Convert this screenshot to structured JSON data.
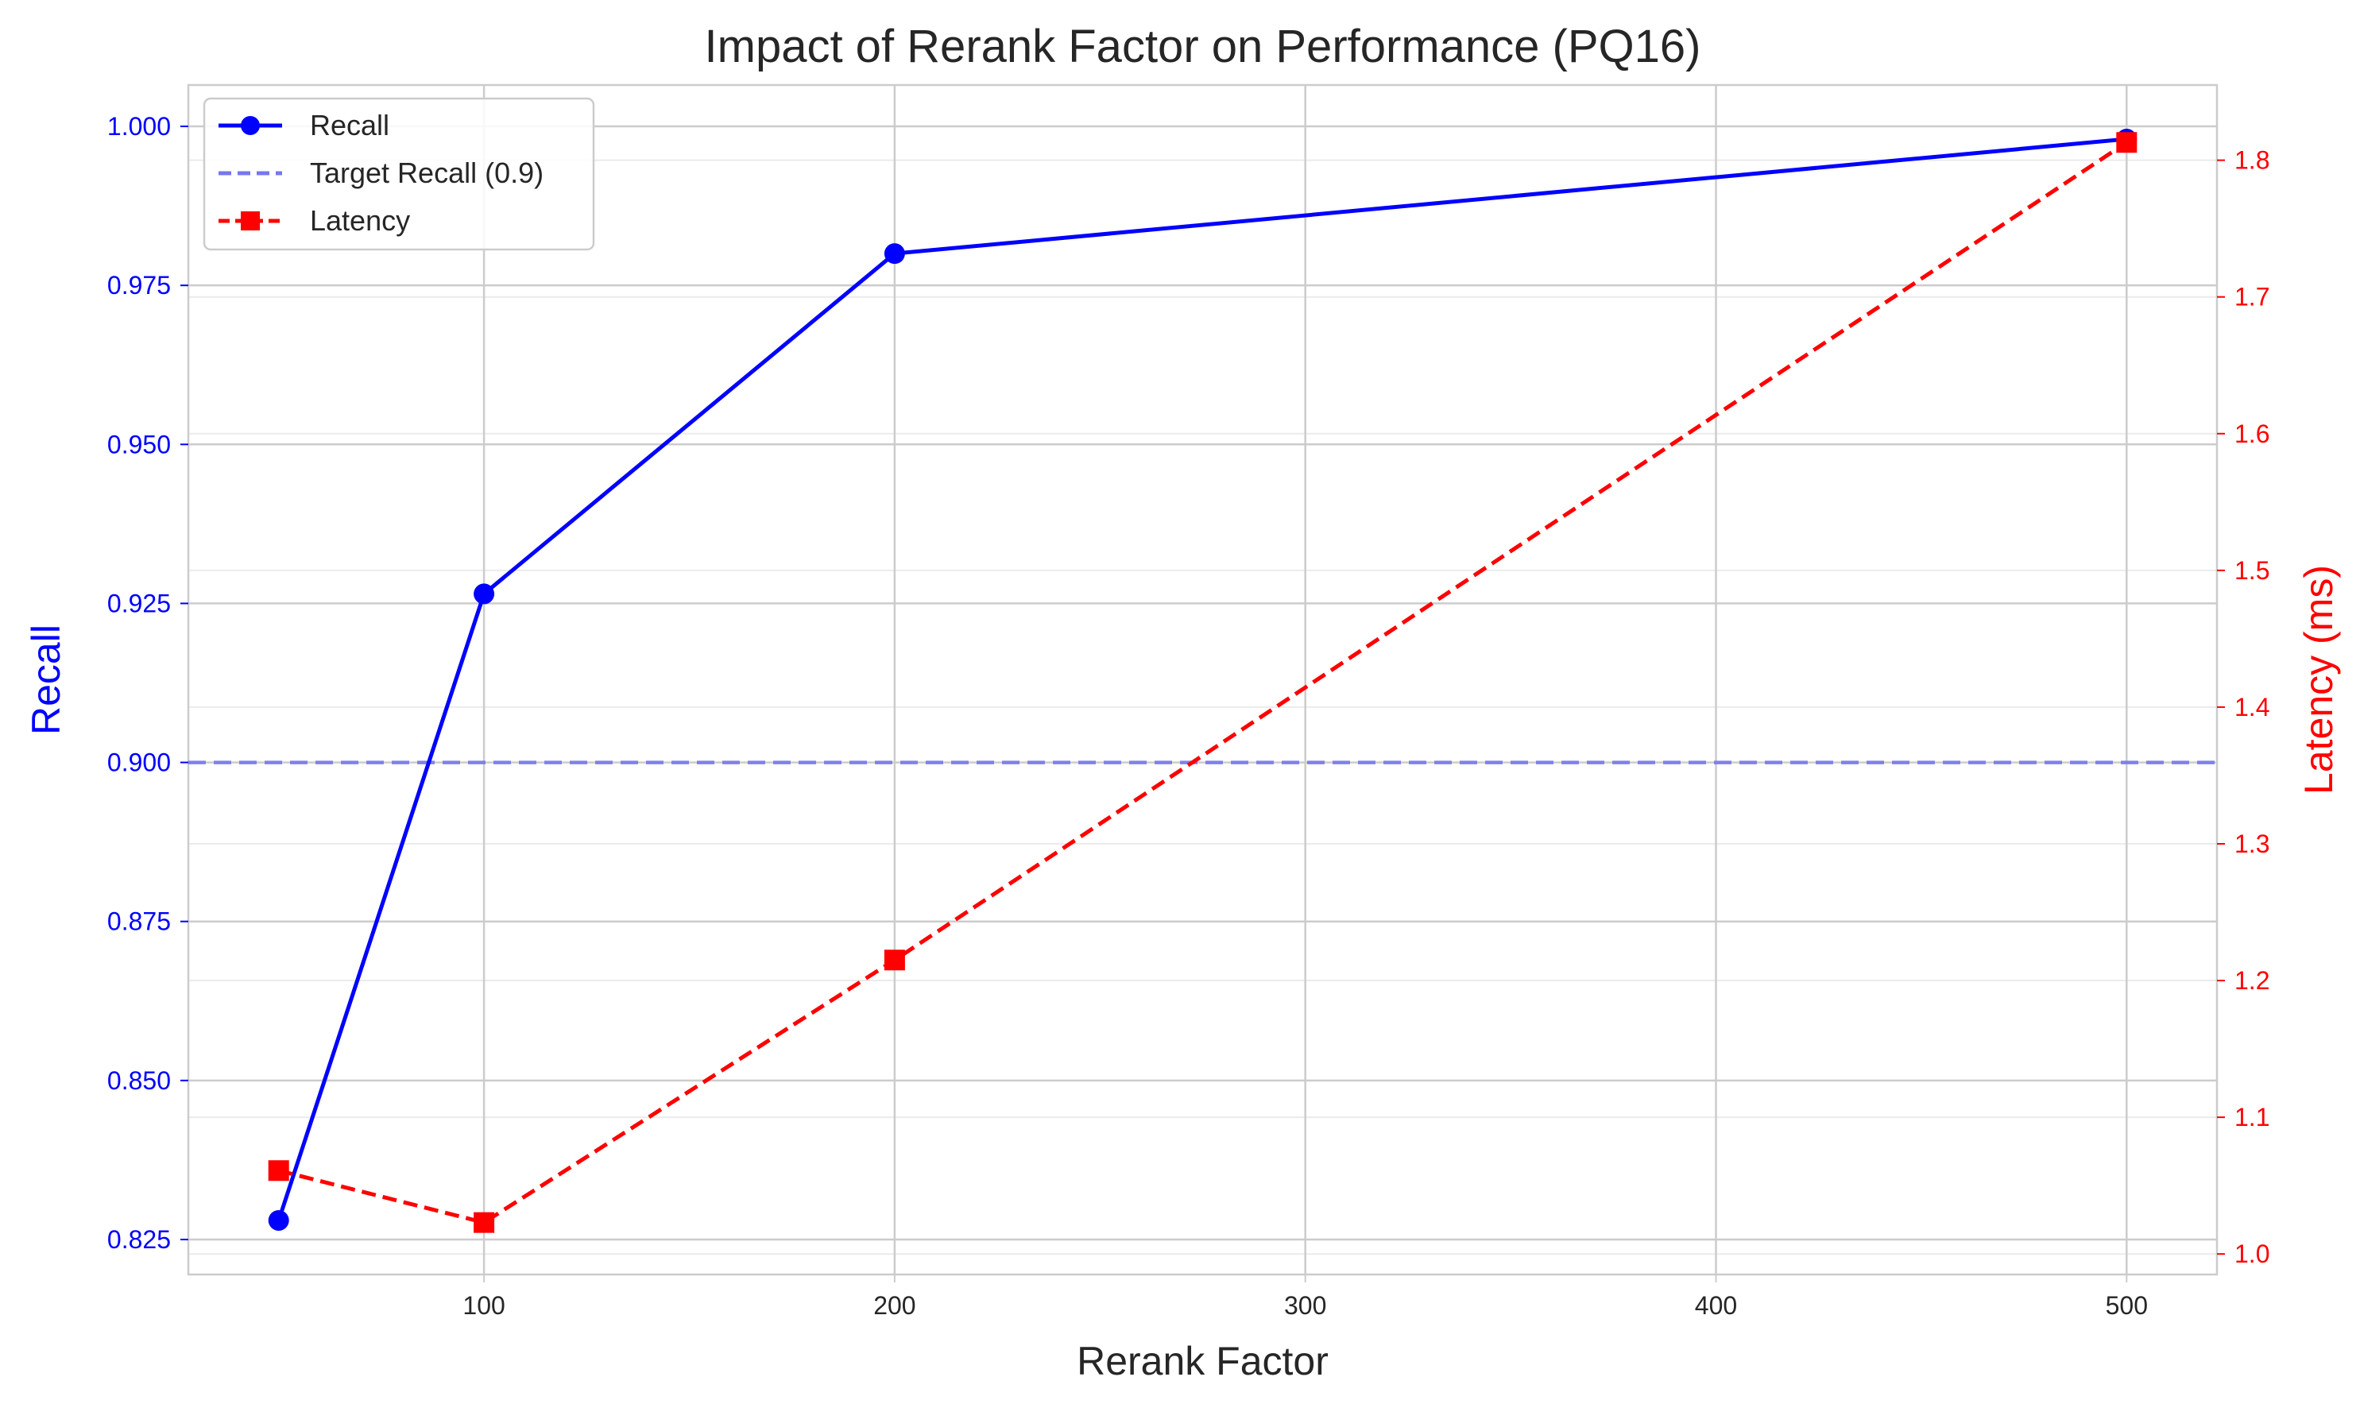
{
  "chart_data": {
    "type": "line",
    "title": "Impact of Rerank Factor on Performance (PQ16)",
    "xlabel": "Rerank Factor",
    "ylabel_left": "Recall",
    "ylabel_right": "Latency (ms)",
    "xlim": [
      28,
      522
    ],
    "ylim_left": [
      0.8195,
      1.0065
    ],
    "ylim_right": [
      0.985,
      1.855
    ],
    "x_ticks": [
      100,
      200,
      300,
      400,
      500
    ],
    "y_ticks_left": [
      0.825,
      0.85,
      0.875,
      0.9,
      0.925,
      0.95,
      0.975,
      1.0
    ],
    "y_ticks_left_labels": [
      "0.825",
      "0.850",
      "0.875",
      "0.900",
      "0.925",
      "0.950",
      "0.975",
      "1.000"
    ],
    "y_ticks_right": [
      1.0,
      1.1,
      1.2,
      1.3,
      1.4,
      1.5,
      1.6,
      1.7,
      1.8
    ],
    "y_ticks_right_labels": [
      "1.0",
      "1.1",
      "1.2",
      "1.3",
      "1.4",
      "1.5",
      "1.6",
      "1.7",
      "1.8"
    ],
    "grid": true,
    "legend_position": "top-left",
    "series": [
      {
        "name": "Recall",
        "axis": "left",
        "color": "#0000ff",
        "style": "solid",
        "marker": "circle",
        "x": [
          50,
          100,
          200,
          500
        ],
        "values": [
          0.828,
          0.9265,
          0.98,
          0.998
        ]
      },
      {
        "name": "Latency",
        "axis": "right",
        "color": "#ff0000",
        "style": "dashed",
        "marker": "square",
        "x": [
          50,
          100,
          200,
          500
        ],
        "values": [
          1.061,
          1.023,
          1.215,
          1.813
        ]
      }
    ],
    "reference_lines": [
      {
        "name": "Target Recall (0.9)",
        "axis": "left",
        "value": 0.9,
        "color": "#7777ee",
        "style": "dashed"
      }
    ],
    "legend": [
      "Recall",
      "Target Recall (0.9)",
      "Latency"
    ]
  }
}
